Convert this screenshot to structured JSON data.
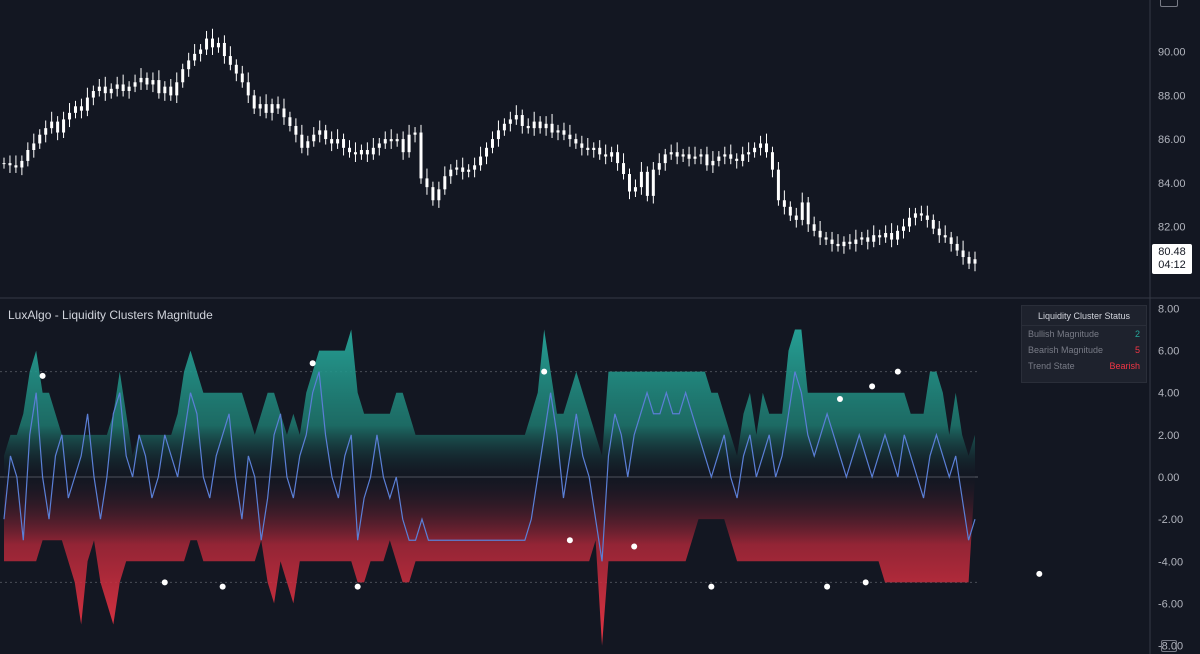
{
  "indicator": {
    "title": "LuxAlgo - Liquidity Clusters Magnitude"
  },
  "status_table": {
    "title": "Liquidity Cluster Status",
    "rows": [
      {
        "label": "Bullish Magnitude",
        "value": "2",
        "color": "#26a69a"
      },
      {
        "label": "Bearish Magnitude",
        "value": "5",
        "color": "#f23645"
      },
      {
        "label": "Trend State",
        "value": "Bearish",
        "color": "#f23645"
      }
    ]
  },
  "last_price": {
    "price": "80.48",
    "countdown": "04:12"
  },
  "colors": {
    "background": "#131722",
    "bullish": "#26a69a",
    "bearish": "#f23645",
    "magnitude_line": "#5b7fd6",
    "candle": "#ffffff",
    "axis_text": "#b2b5be"
  },
  "chart_data": [
    {
      "type": "line",
      "title": "",
      "yaxis_ticks": [
        "90.00",
        "88.00",
        "86.00",
        "84.00",
        "82.00"
      ],
      "ylim": [
        79,
        92
      ],
      "series": [
        {
          "values": [
            84.9,
            84.8,
            84.7,
            85.0,
            85.5,
            85.8,
            86.2,
            86.5,
            86.8,
            86.3,
            86.9,
            87.2,
            87.5,
            87.3,
            87.9,
            88.2,
            88.4,
            88.1,
            88.3,
            88.5,
            88.2,
            88.4,
            88.6,
            88.8,
            88.5,
            88.7,
            88.1,
            88.4,
            88.0,
            88.6,
            89.2,
            89.6,
            89.9,
            90.1,
            90.6,
            90.2,
            90.4,
            89.8,
            89.4,
            89.0,
            88.6,
            88.0,
            87.4,
            87.6,
            87.2,
            87.6,
            87.4,
            87.0,
            86.6,
            86.2,
            85.6,
            85.9,
            86.2,
            86.4,
            86.0,
            85.8,
            86.0,
            85.6,
            85.4,
            85.3,
            85.5,
            85.3,
            85.6,
            85.8,
            86.0,
            85.9,
            86.0,
            85.4,
            86.2,
            86.3,
            84.2,
            83.8,
            83.2,
            83.7,
            84.3,
            84.6,
            84.7,
            84.5,
            84.6,
            84.8,
            85.2,
            85.6,
            86.0,
            86.4,
            86.7,
            86.9,
            87.1,
            86.6,
            86.5,
            86.8,
            86.5,
            86.7,
            86.3,
            86.4,
            86.2,
            86.0,
            85.8,
            85.6,
            85.5,
            85.6,
            85.3,
            85.2,
            85.4,
            84.9,
            84.4,
            83.6,
            83.8,
            84.5,
            83.4,
            84.6,
            84.9,
            85.3,
            85.4,
            85.2,
            85.3,
            85.1,
            85.2,
            85.3,
            84.8,
            85.0,
            85.2,
            85.3,
            85.1,
            85.0,
            85.3,
            85.4,
            85.6,
            85.8,
            85.4,
            84.6,
            83.2,
            82.9,
            82.5,
            82.3,
            83.1,
            82.1,
            81.8,
            81.5,
            81.4,
            81.2,
            81.1,
            81.3,
            81.2,
            81.4,
            81.5,
            81.3,
            81.6,
            81.5,
            81.7,
            81.4,
            81.8,
            82.0,
            82.4,
            82.6,
            82.5,
            82.3,
            81.9,
            81.6,
            81.5,
            81.2,
            80.9,
            80.6,
            80.3,
            80.5
          ]
        }
      ]
    },
    {
      "type": "area",
      "title": "LuxAlgo - Liquidity Clusters Magnitude",
      "yaxis_ticks": [
        "8.00",
        "6.00",
        "4.00",
        "2.00",
        "0.00",
        "-2.00",
        "-4.00",
        "-6.00",
        "-8.00"
      ],
      "ylim": [
        -8.4,
        8.4
      ],
      "series": [
        {
          "name": "Bullish Magnitude",
          "values": [
            1,
            2,
            2,
            3,
            5,
            6,
            4,
            4,
            3,
            2,
            2,
            2,
            2,
            2,
            2,
            2,
            2,
            3,
            5,
            3,
            1,
            2,
            2,
            2,
            2,
            2,
            2,
            3,
            5,
            6,
            5,
            4,
            4,
            4,
            4,
            4,
            4,
            4,
            3,
            2,
            3,
            4,
            4,
            3,
            2,
            3,
            2,
            4,
            5,
            6,
            6,
            6,
            6,
            6,
            7,
            4,
            3,
            3,
            3,
            3,
            3,
            4,
            4,
            3,
            2,
            2,
            2,
            2,
            2,
            2,
            2,
            2,
            2,
            2,
            2,
            2,
            2,
            2,
            2,
            2,
            2,
            2,
            3,
            4,
            7,
            5,
            3,
            3,
            4,
            5,
            4,
            3,
            2,
            1,
            5,
            5,
            5,
            5,
            5,
            5,
            5,
            5,
            5,
            5,
            5,
            5,
            5,
            5,
            5,
            5,
            4,
            4,
            3,
            2,
            1,
            3,
            4,
            2,
            4,
            3,
            3,
            3,
            6,
            7,
            7,
            4,
            4,
            4,
            4,
            4,
            4,
            4,
            4,
            4,
            4,
            4,
            4,
            4,
            4,
            4,
            4,
            3,
            3,
            3,
            5,
            5,
            4,
            2,
            4,
            2,
            1,
            2
          ],
          "color": "#26a69a"
        },
        {
          "name": "Bearish Magnitude",
          "values": [
            -4,
            -4,
            -4,
            -4,
            -4,
            -4,
            -3,
            -3,
            -3,
            -3,
            -4,
            -5,
            -7,
            -4,
            -3,
            -5,
            -6,
            -7,
            -5,
            -4,
            -4,
            -4,
            -4,
            -4,
            -4,
            -4,
            -4,
            -4,
            -4,
            -3,
            -3,
            -4,
            -4,
            -4,
            -4,
            -4,
            -4,
            -4,
            -4,
            -4,
            -3,
            -5,
            -6,
            -4,
            -5,
            -6,
            -4,
            -4,
            -4,
            -4,
            -4,
            -4,
            -4,
            -4,
            -4,
            -5,
            -5,
            -4,
            -4,
            -4,
            -3,
            -4,
            -5,
            -5,
            -4,
            -4,
            -4,
            -4,
            -4,
            -4,
            -4,
            -4,
            -4,
            -4,
            -4,
            -4,
            -4,
            -4,
            -4,
            -4,
            -4,
            -4,
            -4,
            -4,
            -4,
            -4,
            -4,
            -4,
            -4,
            -4,
            -4,
            -4,
            -3,
            -8,
            -4,
            -4,
            -4,
            -4,
            -4,
            -4,
            -4,
            -4,
            -4,
            -4,
            -4,
            -4,
            -4,
            -3,
            -2,
            -2,
            -2,
            -2,
            -2,
            -3,
            -4,
            -4,
            -4,
            -4,
            -4,
            -4,
            -4,
            -4,
            -4,
            -4,
            -4,
            -4,
            -4,
            -4,
            -4,
            -4,
            -4,
            -4,
            -4,
            -4,
            -4,
            -4,
            -4,
            -5,
            -5,
            -5,
            -5,
            -5,
            -5,
            -5,
            -5,
            -5,
            -5,
            -5,
            -5,
            -5,
            -5
          ],
          "color": "#f23645"
        },
        {
          "name": "Magnitude",
          "values": [
            -2,
            1,
            0,
            -3,
            2,
            4,
            0,
            -2,
            1,
            2,
            -1,
            0,
            1,
            3,
            0,
            -2,
            0,
            3,
            4,
            1,
            0,
            2,
            1,
            -1,
            0,
            2,
            1,
            0,
            2,
            4,
            3,
            0,
            -1,
            1,
            2,
            3,
            0,
            -2,
            1,
            0,
            -3,
            -1,
            2,
            3,
            0,
            -1,
            1,
            2,
            4,
            5,
            2,
            0,
            -1,
            1,
            2,
            -3,
            -1,
            0,
            2,
            0,
            -1,
            0,
            -2,
            -3,
            -3,
            -2,
            -3,
            -3,
            -3,
            -3,
            -3,
            -3,
            -3,
            -3,
            -3,
            -3,
            -3,
            -3,
            -3,
            -3,
            -3,
            -3,
            -2,
            0,
            2,
            4,
            2,
            -1,
            1,
            3,
            1,
            0,
            -2,
            -4,
            1,
            3,
            2,
            0,
            2,
            3,
            4,
            3,
            3,
            4,
            3,
            3,
            4,
            3,
            2,
            1,
            0,
            1,
            2,
            0,
            -1,
            1,
            2,
            0,
            1,
            2,
            0,
            1,
            3,
            5,
            4,
            2,
            1,
            2,
            3,
            2,
            1,
            0,
            1,
            2,
            1,
            0,
            1,
            2,
            1,
            0,
            2,
            1,
            0,
            -1,
            1,
            2,
            1,
            0,
            1,
            -1,
            -3,
            -2
          ],
          "color": "#5b7fd6"
        },
        {
          "name": "Bullish Markers",
          "x": [
            6,
            48,
            84,
            130,
            135,
            139,
            167,
            198
          ],
          "values": [
            4.8,
            5.4,
            5.0,
            3.7,
            4.3,
            5.0,
            5.0,
            4.6
          ],
          "color": "#ffffff"
        },
        {
          "name": "Bearish Markers",
          "x": [
            25,
            34,
            55,
            88,
            98,
            110,
            128,
            134,
            161
          ],
          "values": [
            -5.0,
            -5.2,
            -5.2,
            -3.0,
            -3.3,
            -5.2,
            -5.2,
            -5.0,
            -4.6
          ],
          "color": "#ffffff"
        }
      ]
    }
  ]
}
